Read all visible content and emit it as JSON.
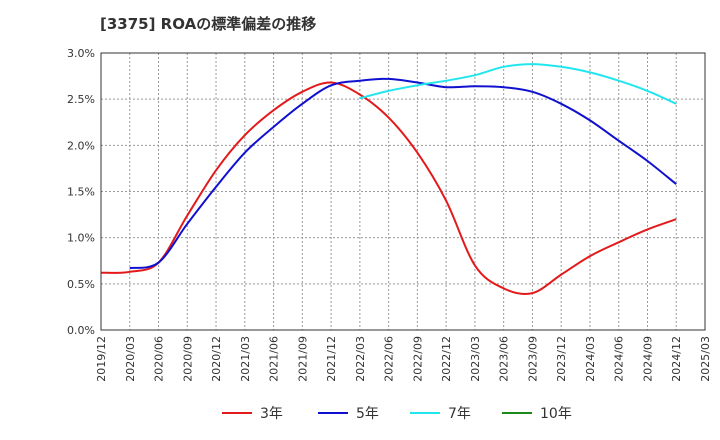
{
  "chart_data": {
    "type": "line",
    "title": "[3375]  ROAの標準偏差の推移",
    "x": [
      "2019/12",
      "2020/03",
      "2020/06",
      "2020/09",
      "2020/12",
      "2021/03",
      "2021/06",
      "2021/09",
      "2021/12",
      "2022/03",
      "2022/06",
      "2022/09",
      "2022/12",
      "2023/03",
      "2023/06",
      "2023/09",
      "2023/12",
      "2024/03",
      "2024/06",
      "2024/09",
      "2024/12",
      "2025/03"
    ],
    "ylim": [
      0,
      3.0
    ],
    "yticks": [
      "0.0%",
      "0.5%",
      "1.0%",
      "1.5%",
      "2.0%",
      "2.5%",
      "3.0%"
    ],
    "grid": true,
    "legend_position": "bottom",
    "series": [
      {
        "name": "3年",
        "color": "#e31a1c",
        "values": [
          0.62,
          0.63,
          0.73,
          1.24,
          1.73,
          2.11,
          2.38,
          2.58,
          2.68,
          2.55,
          2.3,
          1.92,
          1.4,
          0.7,
          0.45,
          0.4,
          0.6,
          0.8,
          0.95,
          1.09,
          1.2,
          null
        ]
      },
      {
        "name": "5年",
        "color": "#1010d0",
        "values": [
          null,
          0.67,
          0.73,
          1.15,
          1.55,
          1.92,
          2.2,
          2.45,
          2.65,
          2.7,
          2.72,
          2.68,
          2.63,
          2.64,
          2.63,
          2.58,
          2.45,
          2.27,
          2.05,
          1.83,
          1.58,
          null
        ]
      },
      {
        "name": "7年",
        "color": "#22e6ee",
        "values": [
          null,
          null,
          null,
          null,
          null,
          null,
          null,
          null,
          null,
          2.51,
          2.59,
          2.65,
          2.7,
          2.76,
          2.85,
          2.88,
          2.85,
          2.79,
          2.7,
          2.59,
          2.45,
          null
        ]
      },
      {
        "name": "10年",
        "color": "#1a8a1a",
        "values": [
          null,
          null,
          null,
          null,
          null,
          null,
          null,
          null,
          null,
          null,
          null,
          null,
          null,
          null,
          null,
          null,
          null,
          null,
          null,
          null,
          null,
          null
        ]
      }
    ]
  }
}
